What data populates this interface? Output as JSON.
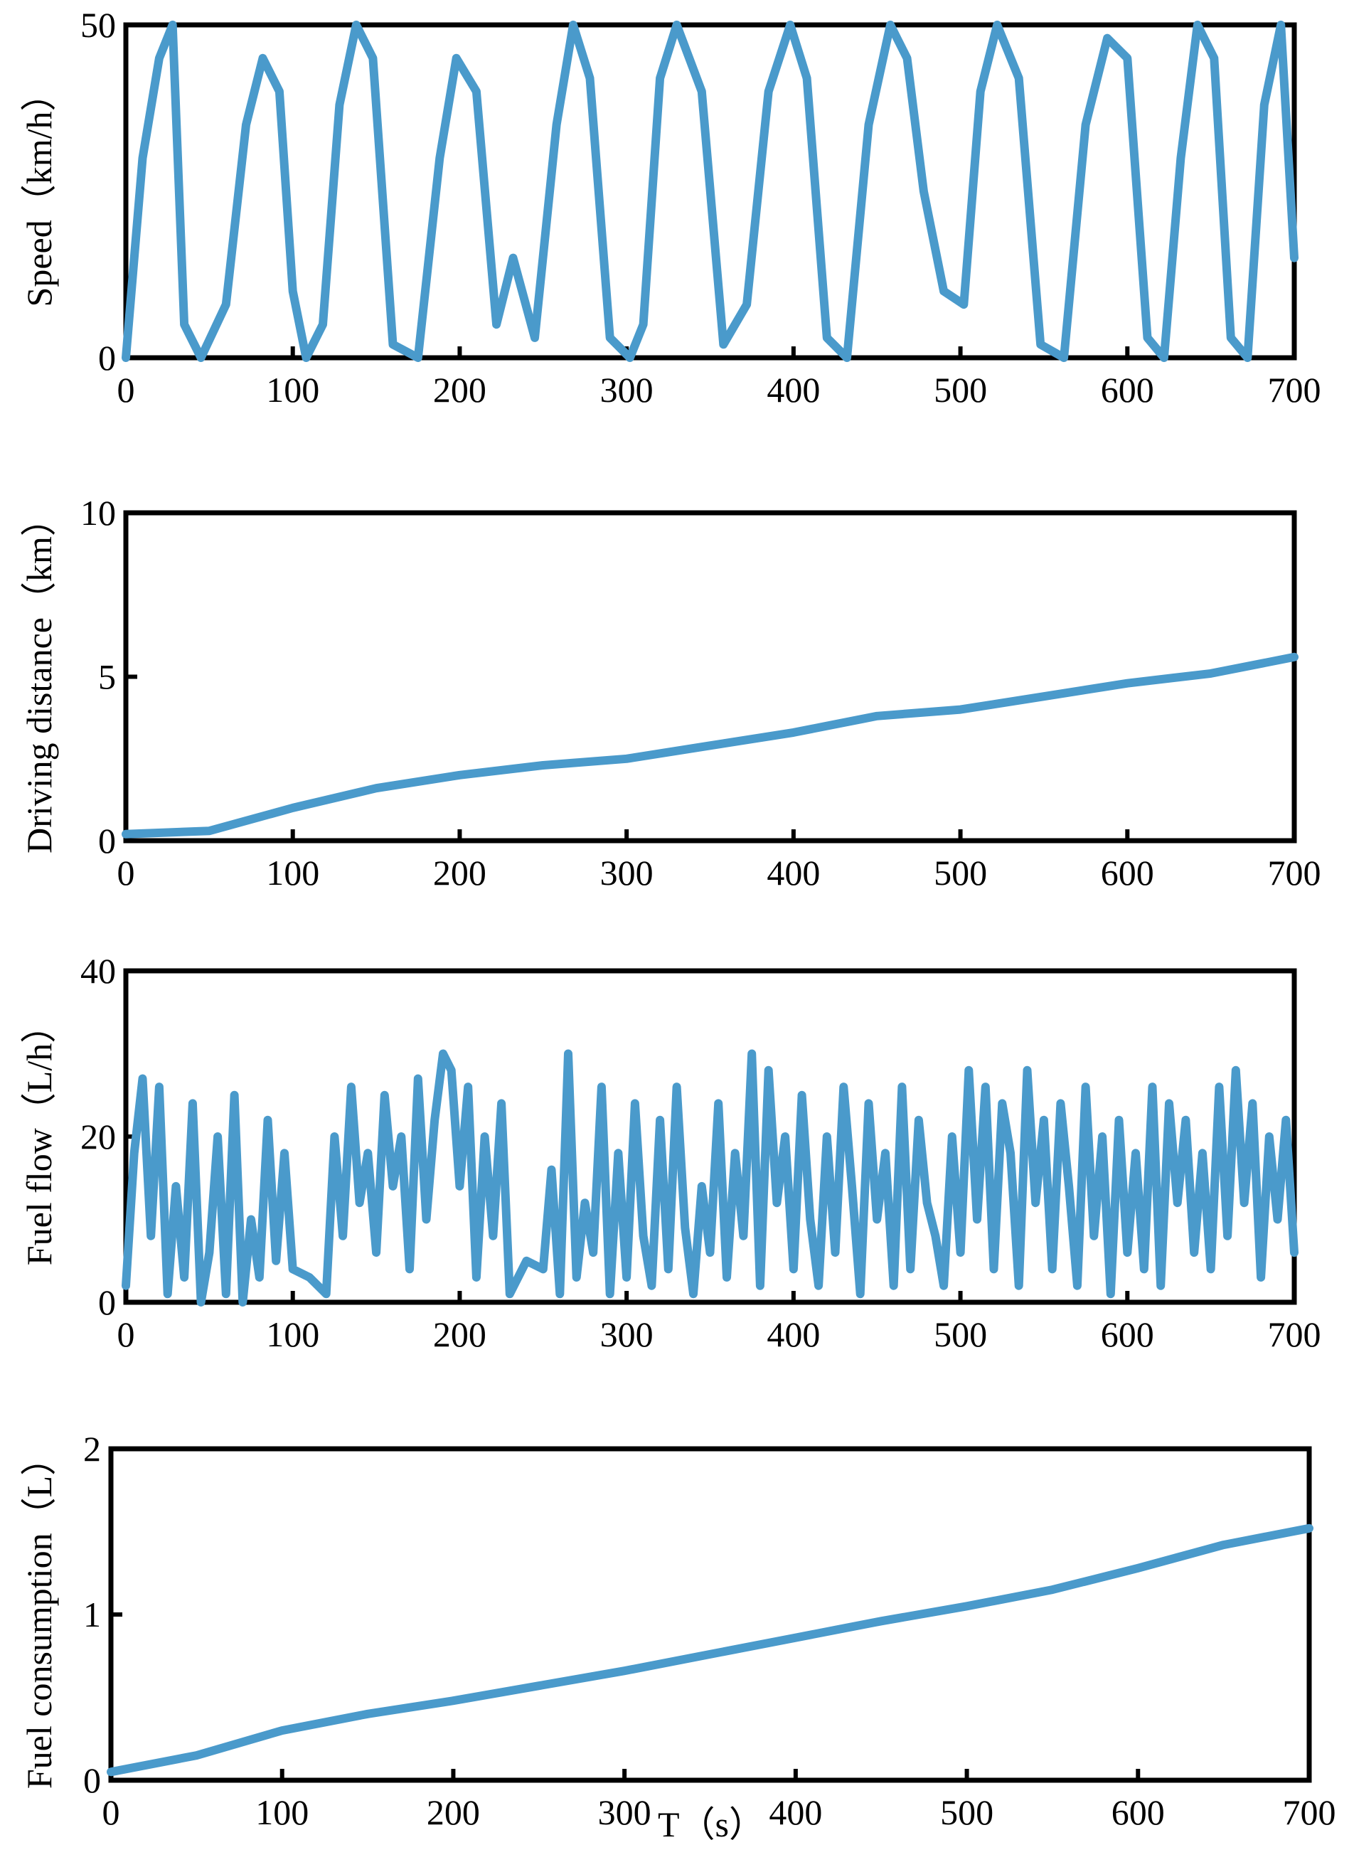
{
  "chart_data": [
    {
      "type": "line",
      "ylabel": "Speed（km/h）",
      "xlabel": "",
      "xlim": [
        0,
        700
      ],
      "ylim": [
        0,
        50
      ],
      "xticks": [
        "0",
        "100",
        "200",
        "300",
        "400",
        "500",
        "600",
        "700"
      ],
      "yticks": [
        "0",
        "50"
      ],
      "ytick_values": [
        0,
        50
      ],
      "series": [
        {
          "name": "Speed",
          "color": "#4a9acb",
          "x": [
            0,
            10,
            20,
            28,
            35,
            45,
            60,
            72,
            82,
            92,
            100,
            108,
            118,
            128,
            138,
            148,
            160,
            175,
            188,
            198,
            210,
            222,
            232,
            245,
            258,
            268,
            278,
            290,
            302,
            310,
            320,
            330,
            345,
            358,
            372,
            385,
            398,
            408,
            420,
            432,
            445,
            458,
            468,
            478,
            490,
            502,
            512,
            522,
            535,
            548,
            562,
            575,
            588,
            600,
            612,
            622,
            632,
            642,
            652,
            662,
            672,
            682,
            692,
            700
          ],
          "y": [
            0,
            30,
            45,
            50,
            5,
            0,
            8,
            35,
            45,
            40,
            10,
            0,
            5,
            38,
            50,
            45,
            2,
            0,
            30,
            45,
            40,
            5,
            15,
            3,
            35,
            50,
            42,
            3,
            0,
            5,
            42,
            50,
            40,
            2,
            8,
            40,
            50,
            42,
            3,
            0,
            35,
            50,
            45,
            25,
            10,
            8,
            40,
            50,
            42,
            2,
            0,
            35,
            48,
            45,
            3,
            0,
            30,
            50,
            45,
            3,
            0,
            38,
            50,
            15
          ]
        }
      ]
    },
    {
      "type": "line",
      "ylabel": "Driving distance（km）",
      "xlabel": "",
      "xlim": [
        0,
        700
      ],
      "ylim": [
        0,
        10
      ],
      "xticks": [
        "0",
        "100",
        "200",
        "300",
        "400",
        "500",
        "600",
        "700"
      ],
      "yticks": [
        "0",
        "5",
        "10"
      ],
      "ytick_values": [
        0,
        5,
        10
      ],
      "series": [
        {
          "name": "Driving distance",
          "color": "#4a9acb",
          "x": [
            0,
            50,
            100,
            150,
            200,
            250,
            300,
            350,
            400,
            450,
            500,
            550,
            600,
            650,
            700
          ],
          "y": [
            0.2,
            0.3,
            1.0,
            1.6,
            2.0,
            2.3,
            2.5,
            2.9,
            3.3,
            3.8,
            4.0,
            4.4,
            4.8,
            5.1,
            5.6
          ]
        }
      ]
    },
    {
      "type": "line",
      "ylabel": "Fuel flow（L/h）",
      "xlabel": "",
      "xlim": [
        0,
        700
      ],
      "ylim": [
        0,
        40
      ],
      "xticks": [
        "0",
        "100",
        "200",
        "300",
        "400",
        "500",
        "600",
        "700"
      ],
      "yticks": [
        "0",
        "20",
        "40"
      ],
      "ytick_values": [
        0,
        20,
        40
      ],
      "series": [
        {
          "name": "Fuel flow",
          "color": "#4a9acb",
          "x": [
            0,
            5,
            10,
            15,
            20,
            25,
            30,
            35,
            40,
            45,
            50,
            55,
            60,
            65,
            70,
            75,
            80,
            85,
            90,
            95,
            100,
            110,
            120,
            125,
            130,
            135,
            140,
            145,
            150,
            155,
            160,
            165,
            170,
            175,
            180,
            185,
            190,
            195,
            200,
            205,
            210,
            215,
            220,
            225,
            230,
            240,
            250,
            255,
            260,
            265,
            270,
            275,
            280,
            285,
            290,
            295,
            300,
            305,
            310,
            315,
            320,
            325,
            330,
            335,
            340,
            345,
            350,
            355,
            360,
            365,
            370,
            375,
            380,
            385,
            390,
            395,
            400,
            405,
            410,
            415,
            420,
            425,
            430,
            435,
            440,
            445,
            450,
            455,
            460,
            465,
            470,
            475,
            480,
            485,
            490,
            495,
            500,
            505,
            510,
            515,
            520,
            525,
            530,
            535,
            540,
            545,
            550,
            555,
            560,
            565,
            570,
            575,
            580,
            585,
            590,
            595,
            600,
            605,
            610,
            615,
            620,
            625,
            630,
            635,
            640,
            645,
            650,
            655,
            660,
            665,
            670,
            675,
            680,
            685,
            690,
            695,
            700
          ],
          "y": [
            2,
            18,
            27,
            8,
            26,
            1,
            14,
            3,
            24,
            0,
            6,
            20,
            1,
            25,
            0,
            10,
            3,
            22,
            5,
            18,
            4,
            3,
            1,
            20,
            8,
            26,
            12,
            18,
            6,
            25,
            14,
            20,
            4,
            27,
            10,
            22,
            30,
            28,
            14,
            26,
            3,
            20,
            8,
            24,
            1,
            5,
            4,
            16,
            1,
            30,
            3,
            12,
            6,
            26,
            1,
            18,
            3,
            24,
            8,
            2,
            22,
            4,
            26,
            9,
            1,
            14,
            6,
            24,
            3,
            18,
            8,
            30,
            2,
            28,
            12,
            20,
            4,
            25,
            10,
            2,
            20,
            6,
            26,
            14,
            1,
            24,
            10,
            18,
            2,
            26,
            4,
            22,
            12,
            8,
            2,
            20,
            6,
            28,
            10,
            26,
            4,
            24,
            18,
            2,
            28,
            12,
            22,
            4,
            24,
            14,
            2,
            26,
            8,
            20,
            1,
            22,
            6,
            18,
            4,
            26,
            2,
            24,
            12,
            22,
            6,
            18,
            4,
            26,
            8,
            28,
            12,
            24,
            3,
            20,
            10,
            22,
            6
          ]
        }
      ]
    },
    {
      "type": "line",
      "ylabel": "Fuel consumption（L）",
      "xlabel": "T（s）",
      "xlim": [
        0,
        700
      ],
      "ylim": [
        0,
        2
      ],
      "xticks": [
        "0",
        "100",
        "200",
        "300",
        "400",
        "500",
        "600",
        "700"
      ],
      "yticks": [
        "0",
        "1",
        "2"
      ],
      "ytick_values": [
        0,
        1,
        2
      ],
      "series": [
        {
          "name": "Fuel consumption",
          "color": "#4a9acb",
          "x": [
            0,
            50,
            100,
            150,
            200,
            250,
            300,
            350,
            400,
            450,
            500,
            550,
            600,
            650,
            700
          ],
          "y": [
            0.05,
            0.15,
            0.3,
            0.4,
            0.48,
            0.57,
            0.66,
            0.76,
            0.86,
            0.96,
            1.05,
            1.15,
            1.28,
            1.42,
            1.52
          ]
        }
      ]
    }
  ]
}
